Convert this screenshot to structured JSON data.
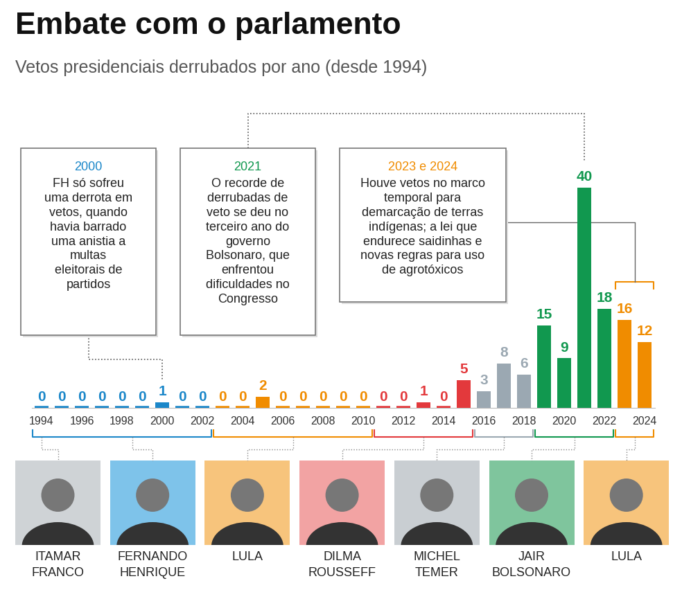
{
  "chart_data": {
    "type": "bar",
    "title": "Embate com o parlamento",
    "subtitle": "Vetos presidenciais derrubados por ano (desde 1994)",
    "x": [
      1994,
      1995,
      1996,
      1997,
      1998,
      1999,
      2000,
      2001,
      2002,
      2003,
      2004,
      2005,
      2006,
      2007,
      2008,
      2009,
      2010,
      2011,
      2012,
      2013,
      2014,
      2015,
      2016,
      2017,
      2018,
      2019,
      2020,
      2021,
      2022,
      2023,
      2024
    ],
    "values": [
      0,
      0,
      0,
      0,
      0,
      0,
      1,
      0,
      0,
      0,
      0,
      2,
      0,
      0,
      0,
      0,
      0,
      0,
      0,
      1,
      0,
      5,
      3,
      8,
      6,
      15,
      9,
      40,
      18,
      16,
      12
    ],
    "colors": [
      "#1b87c9",
      "#1b87c9",
      "#1b87c9",
      "#1b87c9",
      "#1b87c9",
      "#1b87c9",
      "#1b87c9",
      "#1b87c9",
      "#1b87c9",
      "#f08c00",
      "#f08c00",
      "#f08c00",
      "#f08c00",
      "#f08c00",
      "#f08c00",
      "#f08c00",
      "#f08c00",
      "#e3393c",
      "#e3393c",
      "#e3393c",
      "#e3393c",
      "#e3393c",
      "#9ba8b2",
      "#9ba8b2",
      "#9ba8b2",
      "#11984f",
      "#11984f",
      "#11984f",
      "#11984f",
      "#f08c00",
      "#f08c00"
    ],
    "xlim": [
      1993.5,
      2024.5
    ],
    "xticks": [
      1994,
      1996,
      1998,
      2000,
      2002,
      2004,
      2006,
      2008,
      2010,
      2012,
      2014,
      2016,
      2018,
      2020,
      2022,
      2024
    ],
    "ylim": [
      0,
      40
    ],
    "yticks": [],
    "tick_labels": "x",
    "data_labels": true,
    "grid": false,
    "annotations": [
      {
        "title": "2000",
        "text": "FH só sofreu uma derrota em vetos, quando havia barrado uma anistia a multas eleitorais de partidos",
        "years": [
          2000
        ]
      },
      {
        "title": "2021",
        "text": "O recorde de derrubadas de veto se deu no terceiro ano do governo Bolsonaro, que enfrentou dificuldades no Congresso",
        "years": [
          2021
        ]
      },
      {
        "title": "2023 e 2024",
        "text": "Houve vetos no marco temporal para demarcação de terras indígenas; a lei que endurece saidinhas e novas regras para uso de agrotóxicos",
        "years": [
          2023,
          2024
        ]
      }
    ],
    "terms": [
      {
        "name": "ITAMAR FRANCO",
        "years": [
          1994,
          1994
        ],
        "color": "#cfd3d6"
      },
      {
        "name": "FERNANDO HENRIQUE",
        "years": [
          1995,
          2002
        ],
        "color": "#7ec3ea"
      },
      {
        "name": "LULA",
        "years": [
          2003,
          2010
        ],
        "color": "#f7c47c"
      },
      {
        "name": "DILMA ROUSSEFF",
        "years": [
          2011,
          2015
        ],
        "color": "#f2a3a3"
      },
      {
        "name": "MICHEL TEMER",
        "years": [
          2016,
          2018
        ],
        "color": "#c9ced2"
      },
      {
        "name": "JAIR BOLSONARO",
        "years": [
          2019,
          2022
        ],
        "color": "#7fc59d"
      },
      {
        "name": "LULA",
        "years": [
          2023,
          2024
        ],
        "color": "#f7c47c"
      }
    ]
  }
}
